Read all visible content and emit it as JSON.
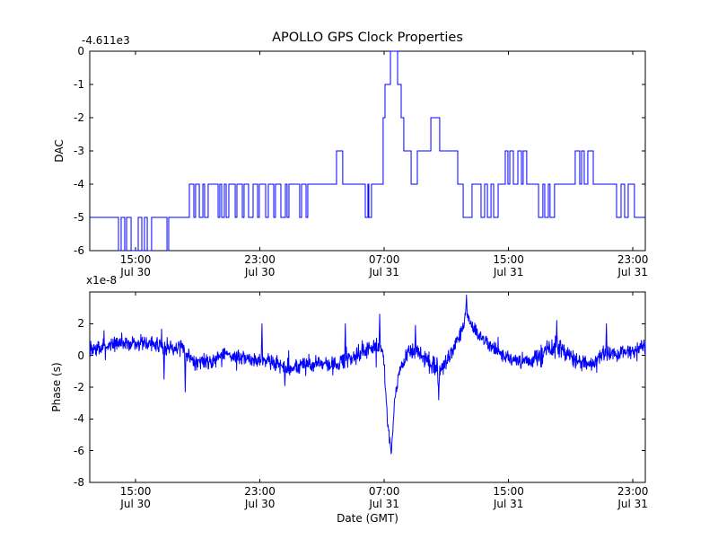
{
  "title": "APOLLO GPS Clock Properties",
  "colors": {
    "line": "#0000ff",
    "frame": "#000000",
    "background": "#ffffff"
  },
  "chart_data": [
    {
      "type": "line",
      "subtype": "step",
      "title": "APOLLO GPS Clock Properties",
      "ylabel": "DAC",
      "offset_text": "-4.611e3",
      "x_unit": "hours since Jul 30 00:00 GMT",
      "xlim_hours": [
        12.05,
        47.8
      ],
      "ylim": [
        -6,
        0
      ],
      "yticks": [
        0,
        -1,
        -2,
        -3,
        -4,
        -5,
        -6
      ],
      "xticks": [
        {
          "hour": 15,
          "time": "15:00",
          "date": "Jul 30"
        },
        {
          "hour": 23,
          "time": "23:00",
          "date": "Jul 30"
        },
        {
          "hour": 31,
          "time": "07:00",
          "date": "Jul 31"
        },
        {
          "hour": 39,
          "time": "15:00",
          "date": "Jul 31"
        },
        {
          "hour": 47,
          "time": "23:00",
          "date": "Jul 31"
        }
      ],
      "line_color": "#0000ff",
      "points_hours_dac": [
        [
          12.05,
          -5
        ],
        [
          13.9,
          -6
        ],
        [
          14.07,
          -5
        ],
        [
          14.3,
          -6
        ],
        [
          14.42,
          -5
        ],
        [
          14.71,
          -6
        ],
        [
          15.17,
          -5
        ],
        [
          15.4,
          -6
        ],
        [
          15.57,
          -5
        ],
        [
          15.75,
          -6
        ],
        [
          16.03,
          -5
        ],
        [
          17.02,
          -6
        ],
        [
          17.13,
          -5
        ],
        [
          18.46,
          -4
        ],
        [
          18.75,
          -5
        ],
        [
          18.86,
          -4
        ],
        [
          19.1,
          -5
        ],
        [
          19.33,
          -4
        ],
        [
          19.44,
          -5
        ],
        [
          19.67,
          -4
        ],
        [
          20.31,
          -5
        ],
        [
          20.42,
          -4
        ],
        [
          20.54,
          -5
        ],
        [
          20.71,
          -4
        ],
        [
          20.83,
          -5
        ],
        [
          21.0,
          -4
        ],
        [
          21.41,
          -5
        ],
        [
          21.52,
          -4
        ],
        [
          21.87,
          -5
        ],
        [
          21.98,
          -4
        ],
        [
          22.27,
          -5
        ],
        [
          22.56,
          -4
        ],
        [
          22.85,
          -5
        ],
        [
          22.96,
          -4
        ],
        [
          23.37,
          -5
        ],
        [
          23.54,
          -4
        ],
        [
          23.89,
          -5
        ],
        [
          24.0,
          -4
        ],
        [
          24.35,
          -5
        ],
        [
          24.64,
          -4
        ],
        [
          24.75,
          -5
        ],
        [
          24.87,
          -4
        ],
        [
          25.56,
          -5
        ],
        [
          25.68,
          -4
        ],
        [
          25.97,
          -5
        ],
        [
          26.08,
          -4
        ],
        [
          27.93,
          -3
        ],
        [
          28.33,
          -4
        ],
        [
          29.78,
          -5
        ],
        [
          29.95,
          -4
        ],
        [
          30.01,
          -5
        ],
        [
          30.18,
          -4
        ],
        [
          30.93,
          -2
        ],
        [
          31.05,
          -1
        ],
        [
          31.4,
          0
        ],
        [
          31.86,
          -1
        ],
        [
          32.09,
          -2
        ],
        [
          32.26,
          -3
        ],
        [
          32.73,
          -4
        ],
        [
          33.13,
          -3
        ],
        [
          34.0,
          -2
        ],
        [
          34.57,
          -3
        ],
        [
          35.73,
          -4
        ],
        [
          36.08,
          -5
        ],
        [
          36.65,
          -4
        ],
        [
          37.23,
          -5
        ],
        [
          37.46,
          -4
        ],
        [
          37.64,
          -5
        ],
        [
          37.87,
          -4
        ],
        [
          38.04,
          -5
        ],
        [
          38.33,
          -4
        ],
        [
          38.79,
          -3
        ],
        [
          38.96,
          -4
        ],
        [
          39.08,
          -3
        ],
        [
          39.31,
          -4
        ],
        [
          39.6,
          -3
        ],
        [
          39.83,
          -4
        ],
        [
          39.94,
          -3
        ],
        [
          40.17,
          -4
        ],
        [
          40.93,
          -5
        ],
        [
          41.21,
          -4
        ],
        [
          41.33,
          -5
        ],
        [
          41.56,
          -4
        ],
        [
          41.67,
          -5
        ],
        [
          41.96,
          -4
        ],
        [
          43.29,
          -3
        ],
        [
          43.58,
          -4
        ],
        [
          43.7,
          -3
        ],
        [
          43.87,
          -4
        ],
        [
          44.1,
          -3
        ],
        [
          44.45,
          -4
        ],
        [
          45.95,
          -5
        ],
        [
          46.24,
          -4
        ],
        [
          46.47,
          -5
        ],
        [
          46.7,
          -4
        ],
        [
          47.1,
          -5
        ],
        [
          47.8,
          -5
        ]
      ]
    },
    {
      "type": "line",
      "subtype": "noisy",
      "ylabel": "Phase (s)",
      "offset_text": "x1e-8",
      "xlabel": "Date (GMT)",
      "value_scale": "1e-8 s",
      "xlim_hours": [
        12.05,
        47.8
      ],
      "ylim": [
        -8,
        4
      ],
      "yticks": [
        2,
        0,
        -2,
        -4,
        -6,
        -8
      ],
      "xticks": [
        {
          "hour": 15,
          "time": "15:00",
          "date": "Jul 30"
        },
        {
          "hour": 23,
          "time": "23:00",
          "date": "Jul 30"
        },
        {
          "hour": 31,
          "time": "07:00",
          "date": "Jul 31"
        },
        {
          "hour": 39,
          "time": "15:00",
          "date": "Jul 31"
        },
        {
          "hour": 47,
          "time": "23:00",
          "date": "Jul 31"
        }
      ],
      "line_color": "#0000ff",
      "mean_path_hour_mean_amp": [
        [
          12.05,
          0.3,
          0.55
        ],
        [
          13.5,
          0.7,
          0.5
        ],
        [
          15.5,
          0.8,
          0.45
        ],
        [
          16.8,
          0.55,
          0.6
        ],
        [
          18.0,
          0.45,
          0.5
        ],
        [
          18.8,
          -0.3,
          0.6
        ],
        [
          19.8,
          -0.4,
          0.5
        ],
        [
          20.6,
          0.1,
          0.5
        ],
        [
          22.0,
          -0.2,
          0.5
        ],
        [
          23.5,
          -0.3,
          0.5
        ],
        [
          24.8,
          -0.8,
          0.55
        ],
        [
          26.5,
          -0.5,
          0.55
        ],
        [
          28.0,
          -0.6,
          0.5
        ],
        [
          29.5,
          0.2,
          0.6
        ],
        [
          30.6,
          0.5,
          0.65
        ],
        [
          30.95,
          0.1,
          0.3
        ],
        [
          31.2,
          -4.0,
          0.5
        ],
        [
          31.45,
          -6.2,
          0.15
        ],
        [
          31.7,
          -2.5,
          0.4
        ],
        [
          32.1,
          -0.5,
          0.5
        ],
        [
          32.6,
          0.2,
          0.6
        ],
        [
          33.5,
          0.0,
          0.6
        ],
        [
          34.0,
          -0.7,
          0.9
        ],
        [
          34.6,
          -1.1,
          1.0
        ],
        [
          35.1,
          -0.2,
          0.6
        ],
        [
          35.9,
          1.3,
          0.5
        ],
        [
          36.3,
          2.7,
          0.5
        ],
        [
          36.7,
          1.7,
          0.5
        ],
        [
          37.3,
          1.1,
          0.5
        ],
        [
          38.2,
          0.3,
          0.45
        ],
        [
          39.3,
          -0.4,
          0.5
        ],
        [
          40.5,
          -0.4,
          0.5
        ],
        [
          41.3,
          0.3,
          0.6
        ],
        [
          42.2,
          0.4,
          0.65
        ],
        [
          43.4,
          -0.4,
          0.6
        ],
        [
          44.2,
          -0.6,
          0.6
        ],
        [
          45.0,
          0.1,
          0.55
        ],
        [
          46.0,
          0.0,
          0.55
        ],
        [
          47.0,
          0.3,
          0.5
        ],
        [
          47.8,
          0.6,
          0.45
        ]
      ],
      "spikes_hour_value": [
        [
          16.84,
          -1.5
        ],
        [
          18.2,
          -2.3
        ],
        [
          23.14,
          2.0
        ],
        [
          24.6,
          -1.9
        ],
        [
          28.5,
          2.0
        ],
        [
          30.7,
          2.6
        ],
        [
          33.0,
          1.9
        ],
        [
          34.5,
          -2.8
        ],
        [
          36.3,
          3.8
        ],
        [
          42.1,
          2.2
        ],
        [
          45.3,
          2.0
        ]
      ],
      "n_points": 1600,
      "noise_seed": 7
    }
  ]
}
